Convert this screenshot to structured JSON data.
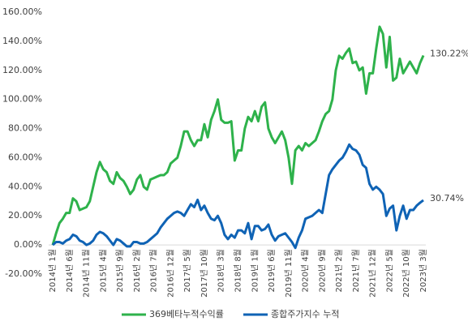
{
  "chart_data": {
    "type": "line",
    "categories": [
      "2014년 1월",
      null,
      null,
      null,
      null,
      "2014년 6월",
      null,
      null,
      null,
      null,
      "2014년 11월",
      null,
      null,
      null,
      null,
      "2015년 4월",
      null,
      null,
      null,
      null,
      "2015년 9월",
      null,
      null,
      null,
      null,
      "2016년 2월",
      null,
      null,
      null,
      null,
      "2016년 7월",
      null,
      null,
      null,
      null,
      "2016년 12월",
      null,
      null,
      null,
      null,
      "2017년 5월",
      null,
      null,
      null,
      null,
      "2017년 10월",
      null,
      null,
      null,
      null,
      "2018년 3월",
      null,
      null,
      null,
      null,
      "2018년 8월",
      null,
      null,
      null,
      null,
      "2019년 1월",
      null,
      null,
      null,
      null,
      "2019년 6월",
      null,
      null,
      null,
      null,
      "2019년 11월",
      null,
      null,
      null,
      null,
      "2020년 4월",
      null,
      null,
      null,
      null,
      "2020년 9월",
      null,
      null,
      null,
      null,
      "2021년 2월",
      null,
      null,
      null,
      null,
      "2021년 7월",
      null,
      null,
      null,
      null,
      "2021년 12월",
      null,
      null,
      null,
      null,
      "2022년 5월",
      null,
      null,
      null,
      null,
      "2022년 10월",
      null,
      null,
      null,
      null,
      "2023년 3월"
    ],
    "series": [
      {
        "name": "369베타누적수익률",
        "color": "#2eb24b",
        "values": [
          0,
          8,
          15,
          18,
          22,
          22,
          32,
          30,
          24,
          25,
          26,
          30,
          40,
          50,
          57,
          52,
          50,
          44,
          42,
          50,
          46,
          44,
          40,
          35,
          38,
          45,
          48,
          40,
          38,
          45,
          46,
          47,
          48,
          48,
          50,
          56,
          58,
          60,
          68,
          78,
          78,
          72,
          68,
          72,
          72,
          83,
          74,
          86,
          92,
          100,
          86,
          84,
          84,
          85,
          58,
          65,
          65,
          80,
          88,
          85,
          92,
          85,
          95,
          98,
          80,
          74,
          70,
          74,
          78,
          72,
          60,
          42,
          65,
          68,
          65,
          70,
          68,
          70,
          72,
          78,
          85,
          90,
          92,
          100,
          120,
          130,
          128,
          132,
          135,
          125,
          126,
          120,
          122,
          104,
          118,
          118,
          135,
          150,
          145,
          122,
          143,
          113,
          115,
          128,
          118,
          122,
          126,
          122,
          118,
          125,
          130.22
        ],
        "value_labels": [
          null,
          null,
          null,
          null,
          null,
          null,
          null,
          null,
          null,
          null,
          null,
          null,
          null,
          null,
          null,
          null,
          null,
          null,
          null,
          null,
          null,
          null,
          null,
          null,
          null,
          null,
          null,
          null,
          null,
          null,
          null,
          null,
          null,
          null,
          null,
          null,
          null,
          null,
          null,
          null,
          null,
          null,
          null,
          null,
          null,
          null,
          null,
          null,
          null,
          null,
          null,
          null,
          null,
          null,
          null,
          null,
          null,
          null,
          null,
          null,
          null,
          null,
          null,
          null,
          null,
          null,
          null,
          null,
          null,
          null,
          null,
          null,
          null,
          null,
          null,
          null,
          null,
          null,
          null,
          null,
          null,
          null,
          null,
          null,
          null,
          null,
          null,
          null,
          null,
          null,
          null,
          null,
          null,
          null,
          null,
          null,
          null,
          null,
          null,
          null,
          null,
          null,
          null,
          null,
          null,
          null,
          null,
          null,
          null,
          null,
          "130.22%"
        ]
      },
      {
        "name": "종합주가지수 누적",
        "color": "#0f63b5",
        "values": [
          0,
          2,
          2,
          1,
          3,
          4,
          7,
          6,
          3,
          2,
          0,
          1,
          3,
          7,
          9,
          8,
          6,
          3,
          0,
          4,
          3,
          1,
          -1,
          -1,
          2,
          2,
          1,
          1,
          2,
          4,
          6,
          8,
          12,
          15,
          18,
          20,
          22,
          23,
          22,
          20,
          24,
          28,
          26,
          31,
          24,
          27,
          22,
          18,
          17,
          20,
          15,
          7,
          4,
          7,
          5,
          10,
          10,
          8,
          15,
          4,
          13,
          13,
          10,
          11,
          14,
          7,
          3,
          6,
          7,
          8,
          5,
          2,
          -2,
          5,
          10,
          18,
          19,
          20,
          22,
          24,
          22,
          35,
          48,
          52,
          55,
          58,
          60,
          64,
          69,
          66,
          65,
          62,
          55,
          53,
          42,
          38,
          40,
          38,
          35,
          20,
          25,
          27,
          10,
          20,
          27,
          18,
          24,
          24,
          27,
          29,
          30.74
        ],
        "value_labels": [
          null,
          null,
          null,
          null,
          null,
          null,
          null,
          null,
          null,
          null,
          null,
          null,
          null,
          null,
          null,
          null,
          null,
          null,
          null,
          null,
          null,
          null,
          null,
          null,
          null,
          null,
          null,
          null,
          null,
          null,
          null,
          null,
          null,
          null,
          null,
          null,
          null,
          null,
          null,
          null,
          null,
          null,
          null,
          null,
          null,
          null,
          null,
          null,
          null,
          null,
          null,
          null,
          null,
          null,
          null,
          null,
          null,
          null,
          null,
          null,
          null,
          null,
          null,
          null,
          null,
          null,
          null,
          null,
          null,
          null,
          null,
          null,
          null,
          null,
          null,
          null,
          null,
          null,
          null,
          null,
          null,
          null,
          null,
          null,
          null,
          null,
          null,
          null,
          null,
          null,
          null,
          null,
          null,
          null,
          null,
          null,
          null,
          null,
          null,
          null,
          null,
          null,
          null,
          null,
          null,
          null,
          null,
          null,
          null,
          null,
          "30.74%"
        ]
      }
    ],
    "ylim": [
      -20,
      160
    ],
    "yticks": [
      {
        "value": -20,
        "label": "-20.00%"
      },
      {
        "value": 0,
        "label": "0.00%"
      },
      {
        "value": 20,
        "label": "20.00%"
      },
      {
        "value": 40,
        "label": "40.00%"
      },
      {
        "value": 60,
        "label": "60.00%"
      },
      {
        "value": 80,
        "label": "80.00%"
      },
      {
        "value": 100,
        "label": "100.00%"
      },
      {
        "value": 120,
        "label": "120.00%"
      },
      {
        "value": 140,
        "label": "140.00%"
      },
      {
        "value": 160,
        "label": "160.00%"
      }
    ],
    "grid": false,
    "legend": "bottom"
  }
}
